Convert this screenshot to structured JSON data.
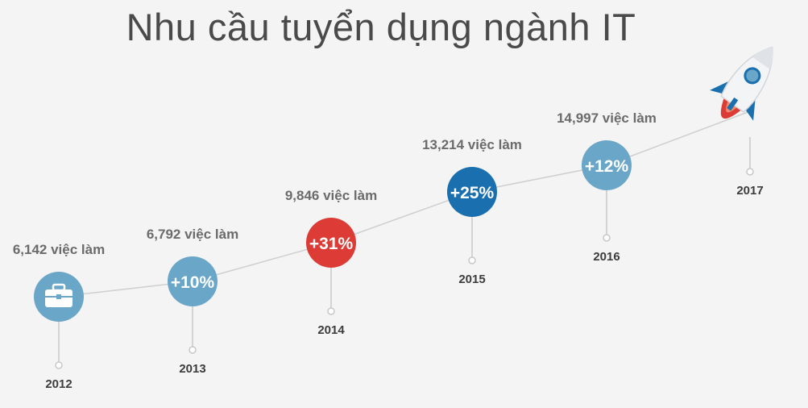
{
  "title": "Nhu cầu tuyển dụng ngành IT",
  "chart_data": {
    "type": "line",
    "title": "Nhu cầu tuyển dụng ngành IT",
    "unit_suffix": "việc làm",
    "points": [
      {
        "year": "2012",
        "value": 6142,
        "value_label": "6,142 việc làm",
        "growth": "",
        "color": "#6aa6c8",
        "icon": "briefcase-icon"
      },
      {
        "year": "2013",
        "value": 6792,
        "value_label": "6,792 việc làm",
        "growth": "+10%",
        "color": "#6aa6c8"
      },
      {
        "year": "2014",
        "value": 9846,
        "value_label": "9,846 việc làm",
        "growth": "+31%",
        "color": "#dc3b36"
      },
      {
        "year": "2015",
        "value": 13214,
        "value_label": "13,214 việc làm",
        "growth": "+25%",
        "color": "#1a6fae"
      },
      {
        "year": "2016",
        "value": 14997,
        "value_label": "14,997 việc làm",
        "growth": "+12%",
        "color": "#6aa6c8"
      },
      {
        "year": "2017",
        "value": null,
        "value_label": "",
        "growth": "",
        "color": "",
        "icon": "rocket-icon"
      }
    ]
  },
  "colors": {
    "connector": "#cfcfcf",
    "stem": "#c8c8c8",
    "rocket_body": "#f2f4f6",
    "rocket_blue": "#1a6fae",
    "rocket_flame": "#dc3b36"
  }
}
